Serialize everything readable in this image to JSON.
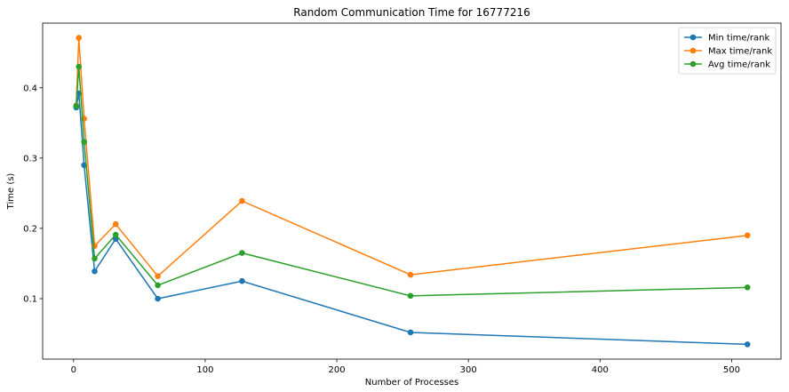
{
  "chart_data": {
    "type": "line",
    "title": "Random Communication Time for 16777216",
    "xlabel": "Number of Processes",
    "ylabel": "Time (s)",
    "xlim": [
      -23.5,
      537.5
    ],
    "ylim": [
      0.014,
      0.492
    ],
    "xticks": [
      0,
      100,
      200,
      300,
      400,
      500
    ],
    "yticks": [
      0.1,
      0.2,
      0.3,
      0.4
    ],
    "grid": false,
    "legend": "top-right",
    "x": [
      2,
      4,
      8,
      16,
      32,
      64,
      128,
      256,
      512
    ],
    "series": [
      {
        "name": "Min time/rank",
        "color": "#1f77b4",
        "values": [
          0.372,
          0.392,
          0.29,
          0.139,
          0.185,
          0.1,
          0.125,
          0.052,
          0.035
        ]
      },
      {
        "name": "Max time/rank",
        "color": "#ff7f0e",
        "values": [
          0.375,
          0.471,
          0.356,
          0.175,
          0.206,
          0.132,
          0.239,
          0.134,
          0.19
        ]
      },
      {
        "name": "Avg time/rank",
        "color": "#2ca02c",
        "values": [
          0.374,
          0.43,
          0.323,
          0.157,
          0.191,
          0.119,
          0.165,
          0.104,
          0.116
        ]
      }
    ]
  }
}
